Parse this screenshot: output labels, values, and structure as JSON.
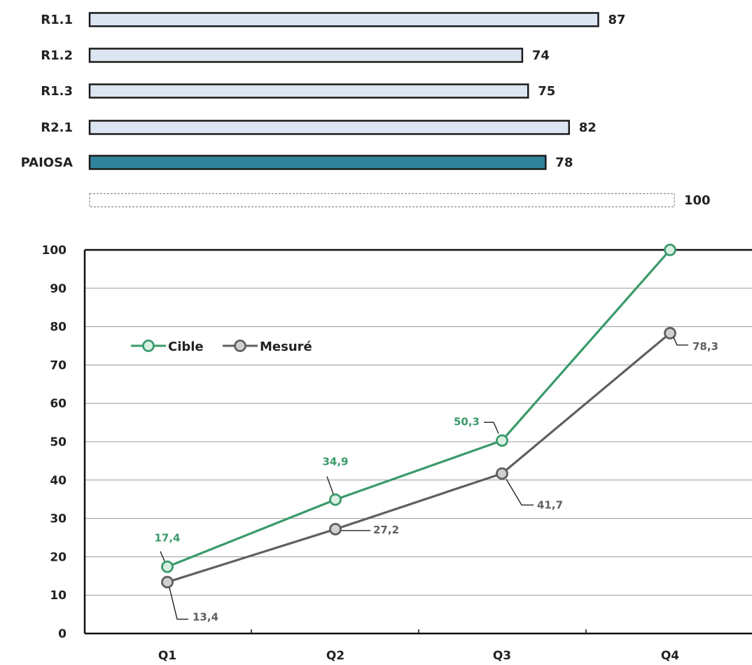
{
  "chart_data": [
    {
      "type": "bar",
      "orientation": "horizontal",
      "categories": [
        "R1.1",
        "R1.2",
        "R1.3",
        "R2.1",
        "PAIOSA",
        ""
      ],
      "values": [
        87,
        74,
        75,
        82,
        78,
        100
      ],
      "value_labels": [
        "87",
        "74",
        "75",
        "82",
        "78",
        "100"
      ],
      "bar_styles": [
        "light",
        "light",
        "light",
        "light",
        "highlight",
        "dashed"
      ],
      "xlim": [
        0,
        100
      ],
      "colors": {
        "light": "#dce6f2",
        "highlight": "#31849b",
        "border": "#1a1a1a",
        "dashed": "#8c8c8c"
      }
    },
    {
      "type": "line",
      "categories": [
        "Q1",
        "Q2",
        "Q3",
        "Q4"
      ],
      "ylim": [
        0,
        100
      ],
      "yticks": [
        "0",
        "10",
        "20",
        "30",
        "40",
        "50",
        "60",
        "70",
        "80",
        "90",
        "100"
      ],
      "grid": true,
      "legend_position": "top-left",
      "series": [
        {
          "name": "Cible",
          "values": [
            17.4,
            34.9,
            50.3,
            100
          ],
          "data_labels": [
            "17,4",
            "34,9",
            "50,3",
            ""
          ],
          "color": "#3a9a6a"
        },
        {
          "name": "Mesuré",
          "values": [
            13.4,
            27.2,
            41.7,
            78.3
          ],
          "data_labels": [
            "13,4",
            "27,2",
            "41,7",
            "78,3"
          ],
          "color": "#5f5f5f"
        }
      ]
    }
  ]
}
